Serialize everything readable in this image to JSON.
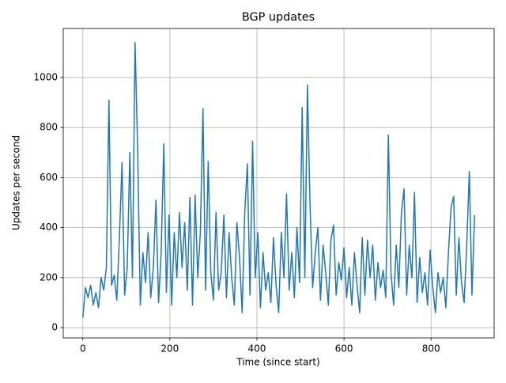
{
  "chart_data": {
    "type": "line",
    "title": "BGP updates",
    "xlabel": "Time (since start)",
    "ylabel": "Updates per second",
    "xlim": [
      -45,
      945
    ],
    "xticks": [
      0,
      200,
      400,
      600,
      800
    ],
    "ylim": [
      -41,
      1196
    ],
    "yticks": [
      0,
      200,
      400,
      600,
      800,
      1000
    ],
    "grid": true,
    "x": [
      0,
      6,
      12,
      18,
      24,
      30,
      36,
      42,
      48,
      54,
      60,
      66,
      72,
      78,
      84,
      90,
      96,
      102,
      108,
      114,
      120,
      126,
      132,
      138,
      144,
      150,
      156,
      162,
      168,
      174,
      180,
      186,
      192,
      198,
      204,
      210,
      216,
      222,
      228,
      234,
      240,
      246,
      252,
      258,
      264,
      270,
      276,
      282,
      288,
      294,
      300,
      306,
      312,
      318,
      324,
      330,
      336,
      342,
      348,
      354,
      360,
      366,
      372,
      378,
      384,
      390,
      396,
      402,
      408,
      414,
      420,
      426,
      432,
      438,
      444,
      450,
      456,
      462,
      468,
      474,
      480,
      486,
      492,
      498,
      504,
      510,
      516,
      522,
      528,
      534,
      540,
      546,
      552,
      558,
      564,
      570,
      576,
      582,
      588,
      594,
      600,
      606,
      612,
      618,
      624,
      630,
      636,
      642,
      648,
      654,
      660,
      666,
      672,
      678,
      684,
      690,
      696,
      702,
      708,
      714,
      720,
      726,
      732,
      738,
      744,
      750,
      756,
      762,
      768,
      774,
      780,
      786,
      792,
      798,
      804,
      810,
      816,
      822,
      828,
      834,
      840,
      846,
      852,
      858,
      864,
      870,
      876,
      882,
      888,
      894,
      900
    ],
    "series": [
      {
        "color": "#1f77b4",
        "values": [
          40,
          160,
          120,
          170,
          90,
          140,
          80,
          200,
          150,
          240,
          910,
          170,
          210,
          110,
          360,
          660,
          130,
          240,
          700,
          200,
          1140,
          710,
          90,
          300,
          180,
          380,
          120,
          240,
          510,
          100,
          300,
          735,
          140,
          450,
          90,
          380,
          200,
          460,
          240,
          420,
          150,
          520,
          90,
          530,
          200,
          380,
          875,
          150,
          665,
          220,
          110,
          460,
          150,
          220,
          450,
          120,
          380,
          200,
          90,
          420,
          280,
          60,
          460,
          655,
          130,
          745,
          200,
          380,
          80,
          300,
          150,
          220,
          100,
          360,
          170,
          60,
          380,
          200,
          535,
          150,
          300,
          120,
          400,
          180,
          880,
          200,
          970,
          490,
          160,
          300,
          400,
          110,
          330,
          220,
          90,
          350,
          410,
          130,
          260,
          190,
          320,
          120,
          240,
          90,
          300,
          170,
          60,
          360,
          130,
          350,
          200,
          330,
          110,
          260,
          160,
          230,
          120,
          770,
          220,
          90,
          330,
          160,
          460,
          555,
          130,
          330,
          200,
          540,
          100,
          280,
          140,
          220,
          90,
          310,
          160,
          60,
          220,
          140,
          200,
          80,
          300,
          480,
          525,
          130,
          360,
          180,
          100,
          330,
          625,
          130,
          450
        ]
      }
    ]
  }
}
